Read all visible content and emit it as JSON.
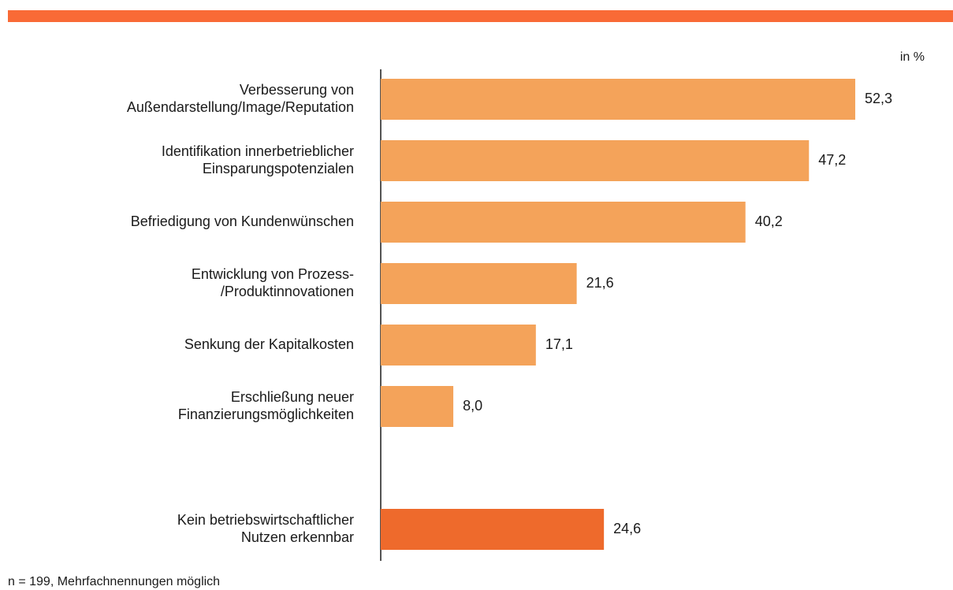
{
  "chart_data": {
    "type": "barh",
    "unit_label": "in %",
    "note": "n = 199, Mehrfachnennungen möglich",
    "categories": [
      [
        "Verbesserung von",
        "Außendarstellung/Image/Reputation"
      ],
      [
        "Identifikation innerbetrieblicher",
        "Einsparungspotenzialen"
      ],
      [
        "Befriedigung von Kundenwünschen"
      ],
      [
        "Entwicklung von Prozess-",
        "/Produktinnovationen"
      ],
      [
        "Senkung der Kapitalkosten"
      ],
      [
        "Erschließung neuer",
        "Finanzierungsmöglichkeiten"
      ],
      null,
      [
        "Kein betriebswirtschaftlicher",
        "Nutzen erkennbar"
      ]
    ],
    "values": [
      52.3,
      47.2,
      40.2,
      21.6,
      17.1,
      8.0,
      null,
      24.6
    ],
    "value_labels": [
      "52,3",
      "47,2",
      "40,2",
      "21,6",
      "17,1",
      "8,0",
      null,
      "24,6"
    ],
    "colors": [
      "#f4a35a",
      "#f4a35a",
      "#f4a35a",
      "#f4a35a",
      "#f4a35a",
      "#f4a35a",
      null,
      "#ee6a2c"
    ],
    "xlim": [
      0,
      60
    ]
  }
}
